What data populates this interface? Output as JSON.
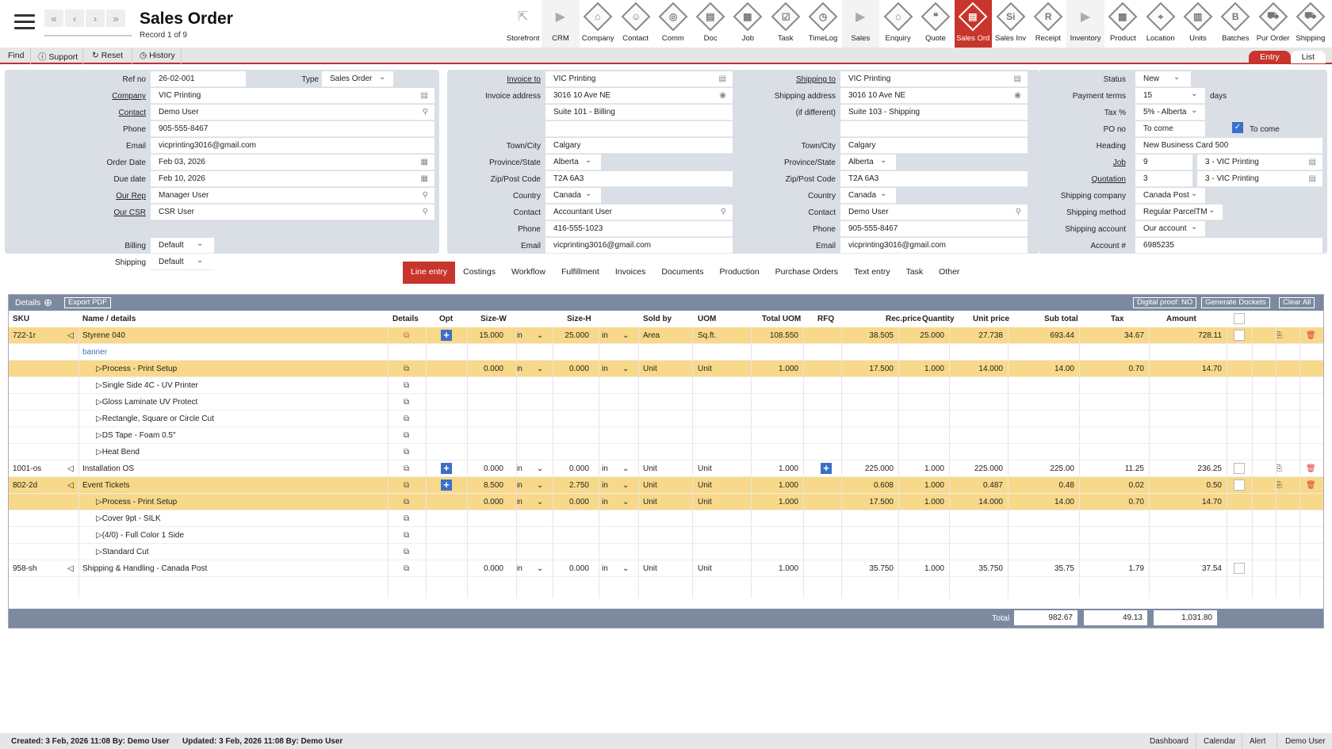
{
  "header": {
    "title": "Sales Order",
    "record": "Record 1 of 9"
  },
  "modules": [
    {
      "label": "Storefront",
      "icon": "storefront-icon",
      "g": "⇱",
      "kind": "plain"
    },
    {
      "label": "CRM",
      "icon": "chevron-right-icon",
      "g": "▶",
      "kind": "arrow"
    },
    {
      "label": "Company",
      "icon": "company-icon",
      "g": "⌂",
      "kind": "dia"
    },
    {
      "label": "Contact",
      "icon": "contact-icon",
      "g": "☺",
      "kind": "dia"
    },
    {
      "label": "Comm",
      "icon": "comm-icon",
      "g": "◎",
      "kind": "dia"
    },
    {
      "label": "Doc",
      "icon": "doc-icon",
      "g": "▤",
      "kind": "dia"
    },
    {
      "label": "Job",
      "icon": "job-icon",
      "g": "▦",
      "kind": "dia"
    },
    {
      "label": "Task",
      "icon": "task-icon",
      "g": "☑",
      "kind": "dia"
    },
    {
      "label": "TimeLog",
      "icon": "clock-icon",
      "g": "◷",
      "kind": "dia"
    },
    {
      "label": "Sales",
      "icon": "chevron-right-icon",
      "g": "▶",
      "kind": "arrow"
    },
    {
      "label": "Enquiry",
      "icon": "enquiry-icon",
      "g": "⌂",
      "kind": "dia"
    },
    {
      "label": "Quote",
      "icon": "quote-icon",
      "g": "❝",
      "kind": "dia"
    },
    {
      "label": "Sales Ord",
      "icon": "sales-order-icon",
      "g": "▤",
      "kind": "dia",
      "active": true
    },
    {
      "label": "Sales Inv",
      "icon": "sales-invoice-icon",
      "g": "Si",
      "kind": "dia"
    },
    {
      "label": "Receipt",
      "icon": "receipt-icon",
      "g": "R",
      "kind": "dia"
    },
    {
      "label": "Inventory",
      "icon": "chevron-right-icon",
      "g": "▶",
      "kind": "arrow"
    },
    {
      "label": "Product",
      "icon": "product-icon",
      "g": "▦",
      "kind": "dia"
    },
    {
      "label": "Location",
      "icon": "location-icon",
      "g": "⌖",
      "kind": "dia"
    },
    {
      "label": "Units",
      "icon": "units-icon",
      "g": "▥",
      "kind": "dia"
    },
    {
      "label": "Batches",
      "icon": "batches-icon",
      "g": "B",
      "kind": "dia"
    },
    {
      "label": "Pur Order",
      "icon": "cart-icon",
      "g": "⛟",
      "kind": "dia"
    },
    {
      "label": "Shipping",
      "icon": "truck-icon",
      "g": "⛟",
      "kind": "dia"
    }
  ],
  "menu": {
    "find": "Find",
    "support": "Support",
    "reset": "Reset",
    "history": "History",
    "entry": "Entry",
    "list": "List"
  },
  "form1": {
    "ref_no_label": "Ref no",
    "ref_no": "26-02-001",
    "type_label": "Type",
    "type": "Sales Order",
    "company_label": "Company",
    "company": "VIC Printing",
    "contact_label": "Contact",
    "contact": "Demo User",
    "phone_label": "Phone",
    "phone": "905-555-8467",
    "email_label": "Email",
    "email": "vicprinting3016@gmail.com",
    "order_date_label": "Order Date",
    "order_date": "Feb 03, 2026",
    "due_date_label": "Due date",
    "due_date": "Feb 10, 2026",
    "our_rep_label": "Our Rep",
    "our_rep": "Manager User",
    "our_csr_label": "Our CSR",
    "our_csr": "CSR User",
    "billing_label": "Billing",
    "billing": "Default",
    "shipping_label": "Shipping",
    "shipping": "Default"
  },
  "invoice": {
    "invoice_to_label": "Invoice to",
    "invoice_to": "VIC Printing",
    "address_label": "Invoice address",
    "address1": "3016 10 Ave NE",
    "address2": "Suite 101 - Billing",
    "town_label": "Town/City",
    "town": "Calgary",
    "prov_label": "Province/State",
    "prov": "Alberta",
    "zip_label": "Zip/Post Code",
    "zip": "T2A 6A3",
    "country_label": "Country",
    "country": "Canada",
    "contact_label": "Contact",
    "contact": "Accountant User",
    "phone_label": "Phone",
    "phone": "416-555-1023",
    "email_label": "Email",
    "email": "vicprinting3016@gmail.com"
  },
  "shipto": {
    "shipping_to_label": "Shipping to",
    "shipping_to": "VIC Printing",
    "address_label": "Shipping address",
    "diff_label": "(if different)",
    "address1": "3016 10 Ave NE",
    "address2": "Suite 103 - Shipping",
    "town_label": "Town/City",
    "town": "Calgary",
    "prov_label": "Province/State",
    "prov": "Alberta",
    "zip_label": "Zip/Post Code",
    "zip": "T2A 6A3",
    "country_label": "Country",
    "country": "Canada",
    "contact_label": "Contact",
    "contact": "Demo User",
    "phone_label": "Phone",
    "phone": "905-555-8467",
    "email_label": "Email",
    "email": "vicprinting3016@gmail.com"
  },
  "status": {
    "status_label": "Status",
    "status": "New",
    "terms_label": "Payment terms",
    "terms": "15",
    "days": "days",
    "tax_label": "Tax %",
    "tax": "5% - Alberta",
    "po_label": "PO no",
    "po": "To come",
    "to_come": "To come",
    "heading_label": "Heading",
    "heading": "New Business Card 500",
    "job_label": "Job",
    "job": "9",
    "job_name": "3 - VIC Printing",
    "quotation_label": "Quotation",
    "quotation": "3",
    "quotation_name": "3 - VIC Printing",
    "ship_company_label": "Shipping company",
    "ship_company": "Canada Post",
    "ship_method_label": "Shipping method",
    "ship_method": "Regular ParcelTM",
    "ship_account_label": "Shipping account",
    "ship_account": "Our account",
    "account_label": "Account #",
    "account": "6985235"
  },
  "tabs": [
    "Line entry",
    "Costings",
    "Workflow",
    "Fulfillment",
    "Invoices",
    "Documents",
    "Production",
    "Purchase Orders",
    "Text entry",
    "Task",
    "Other"
  ],
  "details": {
    "title": "Details",
    "export": "Export PDF",
    "digital": "Digital proof: NO",
    "dockets": "Generate Dockets",
    "clear": "Clear All"
  },
  "columns": {
    "sku": "SKU",
    "name": "Name / details",
    "details": "Details",
    "opt": "Opt",
    "size_w": "Size-W",
    "size_h": "Size-H",
    "sold_by": "Sold by",
    "uom": "UOM",
    "total_uom": "Total UOM",
    "rfq": "RFQ",
    "rec_price": "Rec.price",
    "quantity": "Quantity",
    "unit_price": "Unit price",
    "sub_total": "Sub total",
    "tax": "Tax",
    "amount": "Amount"
  },
  "rows": [
    {
      "y": true,
      "sku": "722-1r",
      "name": "Styrene 040",
      "plus": true,
      "w": "15.000",
      "wu": "in",
      "h": "25.000",
      "hu": "in",
      "sold": "Area",
      "uom": "Sq.ft.",
      "tuom": "108.550",
      "rec": "38.505",
      "qty": "25.000",
      "unit": "27.738",
      "sub": "693.44",
      "tax": "34.67",
      "amt": "728.11",
      "main": true
    },
    {
      "y": false,
      "name": "banner",
      "note": true
    },
    {
      "y": true,
      "name": "▷Process - Print Setup",
      "indent": true,
      "w": "0.000",
      "wu": "in",
      "h": "0.000",
      "hu": "in",
      "sold": "Unit",
      "uom": "Unit",
      "tuom": "1.000",
      "rec": "17.500",
      "qty": "1.000",
      "unit": "14.000",
      "sub": "14.00",
      "tax": "0.70",
      "amt": "14.70"
    },
    {
      "y": false,
      "name": "▷Single Side 4C - UV Printer",
      "indent": true
    },
    {
      "y": false,
      "name": "▷Gloss Laminate UV Protect",
      "indent": true
    },
    {
      "y": false,
      "name": "▷Rectangle, Square or Circle Cut",
      "indent": true
    },
    {
      "y": false,
      "name": "▷DS Tape - Foam 0.5\"",
      "indent": true
    },
    {
      "y": false,
      "name": "▷Heat Bend",
      "indent": true
    },
    {
      "y": false,
      "sku": "1001-os",
      "name": "Installation OS",
      "plus": true,
      "rfqplus": true,
      "w": "0.000",
      "wu": "in",
      "h": "0.000",
      "hu": "in",
      "sold": "Unit",
      "uom": "Unit",
      "tuom": "1.000",
      "rec": "225.000",
      "qty": "1.000",
      "unit": "225.000",
      "sub": "225.00",
      "tax": "11.25",
      "amt": "236.25",
      "main": true
    },
    {
      "y": true,
      "sku": "802-2d",
      "name": "Event Tickets",
      "plus": true,
      "w": "8.500",
      "wu": "in",
      "h": "2.750",
      "hu": "in",
      "sold": "Unit",
      "uom": "Unit",
      "tuom": "1.000",
      "rec": "0.608",
      "qty": "1.000",
      "unit": "0.487",
      "sub": "0.48",
      "tax": "0.02",
      "amt": "0.50",
      "main": true
    },
    {
      "y": true,
      "name": "▷Process - Print Setup",
      "indent": true,
      "w": "0.000",
      "wu": "in",
      "h": "0.000",
      "hu": "in",
      "sold": "Unit",
      "uom": "Unit",
      "tuom": "1.000",
      "rec": "17.500",
      "qty": "1.000",
      "unit": "14.000",
      "sub": "14.00",
      "tax": "0.70",
      "amt": "14.70"
    },
    {
      "y": false,
      "name": "▷Cover 9pt - SILK",
      "indent": true
    },
    {
      "y": false,
      "name": "▷(4/0) - Full Color 1 Side",
      "indent": true
    },
    {
      "y": false,
      "name": "▷Standard Cut",
      "indent": true
    },
    {
      "y": false,
      "sku": "958-sh",
      "name": "Shipping & Handling - Canada Post",
      "w": "0.000",
      "wu": "in",
      "h": "0.000",
      "hu": "in",
      "sold": "Unit",
      "uom": "Unit",
      "tuom": "1.000",
      "rec": "35.750",
      "qty": "1.000",
      "unit": "35.750",
      "sub": "35.75",
      "tax": "1.79",
      "amt": "37.54",
      "cb": true
    }
  ],
  "totals": {
    "label": "Total",
    "sub": "982.67",
    "tax": "49.13",
    "amount": "1,031.80"
  },
  "footer": {
    "created": "Created: 3 Feb, 2026    11:08    By: Demo User",
    "updated": "Updated: 3 Feb, 2026    11:08    By: Demo User",
    "dashboard": "Dashboard",
    "calendar": "Calendar",
    "alert": "Alert",
    "user": "Demo User"
  }
}
